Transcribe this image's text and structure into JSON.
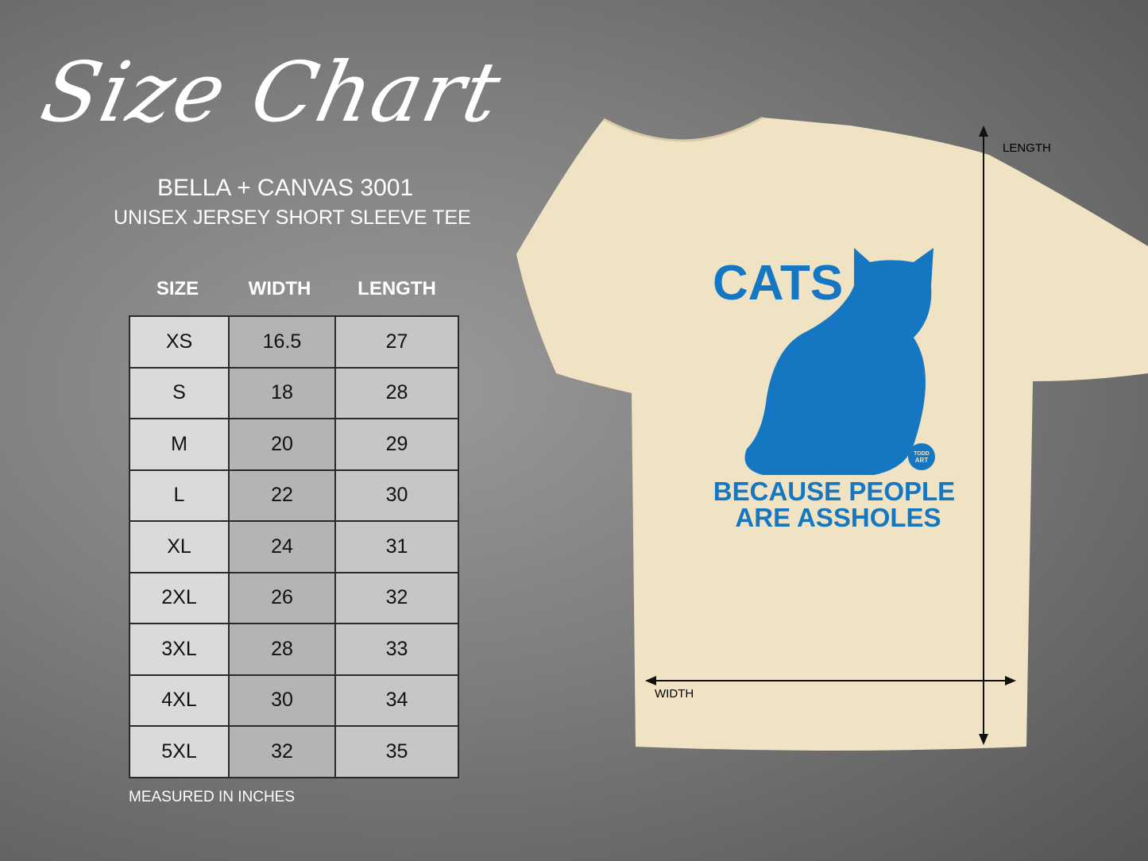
{
  "heading": "Size Chart",
  "brand": "BELLA + CANVAS 3001",
  "model": "UNISEX JERSEY SHORT SLEEVE TEE",
  "table": {
    "columns": [
      "SIZE",
      "WIDTH",
      "LENGTH"
    ],
    "rows": [
      [
        "XS",
        "16.5",
        "27"
      ],
      [
        "S",
        "18",
        "28"
      ],
      [
        "M",
        "20",
        "29"
      ],
      [
        "L",
        "22",
        "30"
      ],
      [
        "XL",
        "24",
        "31"
      ],
      [
        "2XL",
        "26",
        "32"
      ],
      [
        "3XL",
        "28",
        "33"
      ],
      [
        "4XL",
        "30",
        "34"
      ],
      [
        "5XL",
        "32",
        "35"
      ]
    ]
  },
  "note": "MEASURED IN INCHES",
  "shirt": {
    "color": "#efe3c3",
    "print_color": "#1577c2",
    "print_line1": "CATS",
    "print_line2": "BECAUSE PEOPLE",
    "print_line3": "ARE ASSHOLES",
    "logo_text": "TODD ART",
    "length_label": "LENGTH",
    "width_label": "WIDTH"
  }
}
